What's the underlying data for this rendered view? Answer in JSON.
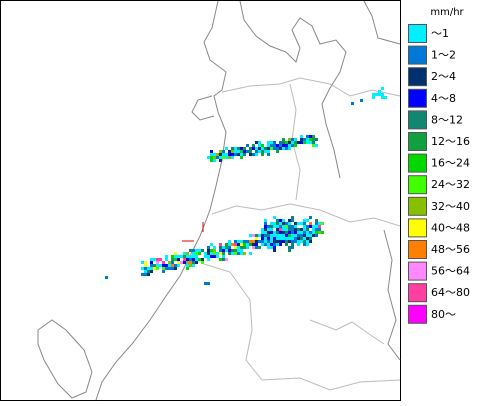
{
  "legend": {
    "unit": "mm/hr",
    "items": [
      {
        "label": "～1",
        "color": "#00f0ff"
      },
      {
        "label": "1～2",
        "color": "#0078d8"
      },
      {
        "label": "2～4",
        "color": "#003070"
      },
      {
        "label": "4～8",
        "color": "#0000ff"
      },
      {
        "label": "8～12",
        "color": "#108870"
      },
      {
        "label": "12～16",
        "color": "#10a040"
      },
      {
        "label": "16～24",
        "color": "#00d800"
      },
      {
        "label": "24～32",
        "color": "#40ff00"
      },
      {
        "label": "32～40",
        "color": "#88c000"
      },
      {
        "label": "40～48",
        "color": "#ffff00"
      },
      {
        "label": "48～56",
        "color": "#ff8000"
      },
      {
        "label": "56～64",
        "color": "#ff88ff"
      },
      {
        "label": "64～80",
        "color": "#ff40a0"
      },
      {
        "label": "80～",
        "color": "#ff00ff"
      }
    ]
  }
}
